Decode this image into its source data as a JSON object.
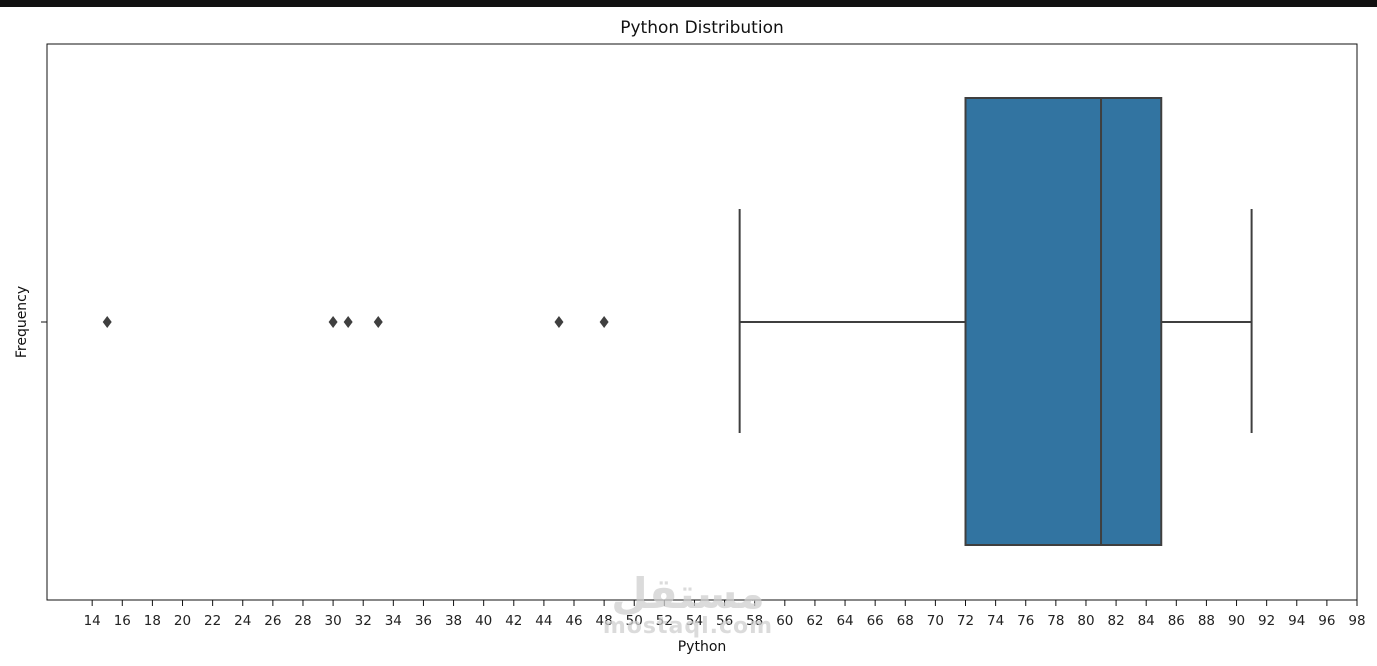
{
  "chart_data": {
    "type": "box",
    "title": "Python Distribution",
    "xlabel": "Python",
    "ylabel": "Frequency",
    "orientation": "horizontal",
    "xlim": [
      11,
      98
    ],
    "xticks": [
      14,
      16,
      18,
      20,
      22,
      24,
      26,
      28,
      30,
      32,
      34,
      36,
      38,
      40,
      42,
      44,
      46,
      48,
      50,
      52,
      54,
      56,
      58,
      60,
      62,
      64,
      66,
      68,
      70,
      72,
      74,
      76,
      78,
      80,
      82,
      84,
      86,
      88,
      90,
      92,
      94,
      96,
      98
    ],
    "box": {
      "whisker_low": 57,
      "q1": 72,
      "median": 81,
      "q3": 85,
      "whisker_high": 91,
      "outliers": [
        15,
        30,
        31,
        33,
        45,
        48
      ]
    },
    "grid": false,
    "colors": {
      "box_fill": "#3274a1",
      "line": "#3f3f3f",
      "outlier": "#3f3f3f",
      "topbar": "#111111"
    }
  },
  "watermark": {
    "arabic": "مستقل",
    "latin": "mostaql.com"
  }
}
